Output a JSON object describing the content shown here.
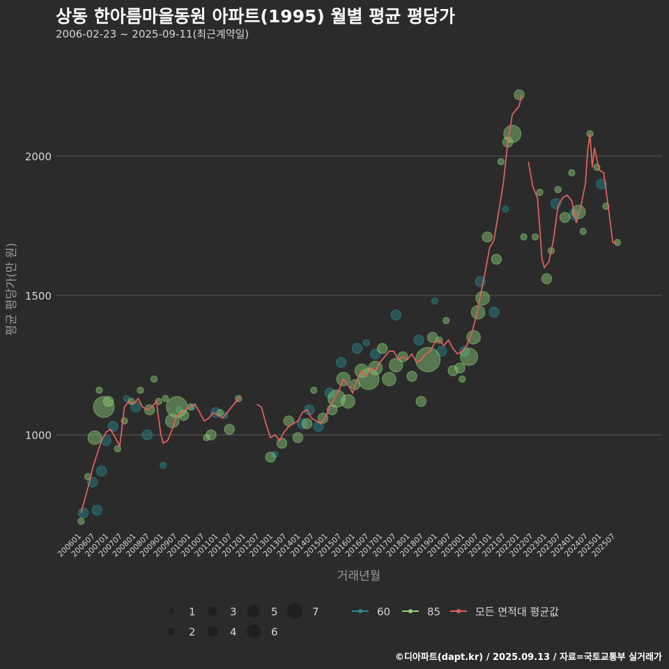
{
  "header": {
    "title": "상동 한아름마을동원 아파트(1995) 월별 평균 평당가",
    "subtitle": "2006-02-23 ~ 2025-09-11(최근계약일)"
  },
  "footer": {
    "credit": "©디아파트(dapt.kr) / 2025.09.13 / 자료=국토교통부 실거래가"
  },
  "colors": {
    "background": "#2b2b2c",
    "grid": "#5a5a5a",
    "series_60": "#2a8a8e",
    "series_85": "#8fd178",
    "series_avg": "#e06060"
  },
  "chart_data": {
    "type": "line",
    "xlabel": "거래년월",
    "ylabel": "평균 평당가(만 원)",
    "ylim": [
      660,
      2360
    ],
    "yticks": [
      1000,
      1500,
      2000
    ],
    "xticks": [
      "200601",
      "200607",
      "200701",
      "200707",
      "200801",
      "200807",
      "200901",
      "200907",
      "201001",
      "201007",
      "201101",
      "201107",
      "201201",
      "201207",
      "201301",
      "201307",
      "201401",
      "201407",
      "201501",
      "201507",
      "201601",
      "201607",
      "201701",
      "201707",
      "201801",
      "201807",
      "201901",
      "201907",
      "202001",
      "202007",
      "202101",
      "202107",
      "202201",
      "202207",
      "202301",
      "202307",
      "202401",
      "202407",
      "202501",
      "202507"
    ],
    "grid": true,
    "legend": {
      "size_title": "",
      "size_levels": [
        1,
        2,
        3,
        4,
        5,
        6,
        7
      ],
      "series": [
        {
          "name": "60",
          "color": "#2a8a8e"
        },
        {
          "name": "85",
          "color": "#8fd178"
        },
        {
          "name": "모든 면적대 평균값",
          "color": "#e06060"
        }
      ]
    },
    "avg_line": [
      [
        "2006-02",
        720
      ],
      [
        "2006-04",
        780
      ],
      [
        "2006-06",
        840
      ],
      [
        "2006-07",
        880
      ],
      [
        "2006-09",
        930
      ],
      [
        "2006-11",
        980
      ],
      [
        "2007-01",
        1010
      ],
      [
        "2007-03",
        1020
      ],
      [
        "2007-05",
        990
      ],
      [
        "2007-07",
        960
      ],
      [
        "2007-09",
        1100
      ],
      [
        "2007-11",
        1120
      ],
      [
        "2008-01",
        1110
      ],
      [
        "2008-03",
        1130
      ],
      [
        "2008-05",
        1100
      ],
      [
        "2008-07",
        1090
      ],
      [
        "2008-09",
        1100
      ],
      [
        "2008-11",
        1120
      ],
      [
        "2009-01",
        1000
      ],
      [
        "2009-02",
        970
      ],
      [
        "2009-04",
        980
      ],
      [
        "2009-06",
        1020
      ],
      [
        "2009-08",
        1070
      ],
      [
        "2009-10",
        1080
      ],
      [
        "2009-12",
        1090
      ],
      [
        "2010-02",
        1100
      ],
      [
        "2010-04",
        1110
      ],
      [
        "2010-06",
        1080
      ],
      [
        "2010-08",
        1050
      ],
      [
        "2010-10",
        1060
      ],
      [
        "2010-12",
        1080
      ],
      [
        "2011-02",
        1070
      ],
      [
        "2011-04",
        1060
      ],
      [
        "2011-06",
        1080
      ],
      [
        "2011-08",
        1100
      ],
      [
        "2011-10",
        1120
      ],
      [
        "2011-12",
        1140
      ],
      null,
      [
        "2012-07",
        1110
      ],
      [
        "2012-09",
        1100
      ],
      [
        "2012-11",
        1040
      ],
      [
        "2013-01",
        990
      ],
      [
        "2013-03",
        1000
      ],
      [
        "2013-05",
        980
      ],
      [
        "2013-07",
        1010
      ],
      [
        "2013-09",
        1030
      ],
      [
        "2013-11",
        1040
      ],
      [
        "2014-01",
        1050
      ],
      [
        "2014-03",
        1080
      ],
      [
        "2014-05",
        1090
      ],
      [
        "2014-07",
        1060
      ],
      [
        "2014-09",
        1050
      ],
      [
        "2014-11",
        1040
      ],
      [
        "2015-01",
        1060
      ],
      [
        "2015-03",
        1100
      ],
      [
        "2015-05",
        1130
      ],
      [
        "2015-07",
        1160
      ],
      [
        "2015-09",
        1200
      ],
      [
        "2015-11",
        1180
      ],
      [
        "2016-01",
        1150
      ],
      [
        "2016-03",
        1200
      ],
      [
        "2016-05",
        1230
      ],
      [
        "2016-07",
        1210
      ],
      [
        "2016-09",
        1240
      ],
      [
        "2016-11",
        1230
      ],
      [
        "2017-01",
        1260
      ],
      [
        "2017-03",
        1280
      ],
      [
        "2017-05",
        1300
      ],
      [
        "2017-07",
        1300
      ],
      [
        "2017-09",
        1270
      ],
      [
        "2017-11",
        1280
      ],
      [
        "2018-01",
        1270
      ],
      [
        "2018-03",
        1290
      ],
      [
        "2018-05",
        1260
      ],
      [
        "2018-07",
        1270
      ],
      [
        "2018-09",
        1290
      ],
      [
        "2018-11",
        1300
      ],
      [
        "2019-01",
        1330
      ],
      [
        "2019-03",
        1340
      ],
      [
        "2019-05",
        1320
      ],
      [
        "2019-07",
        1340
      ],
      [
        "2019-09",
        1310
      ],
      [
        "2019-11",
        1290
      ],
      [
        "2020-01",
        1300
      ],
      [
        "2020-03",
        1320
      ],
      [
        "2020-05",
        1360
      ],
      [
        "2020-07",
        1420
      ],
      [
        "2020-09",
        1500
      ],
      [
        "2020-11",
        1580
      ],
      [
        "2021-01",
        1670
      ],
      [
        "2021-03",
        1700
      ],
      [
        "2021-05",
        1800
      ],
      [
        "2021-07",
        1900
      ],
      [
        "2021-09",
        2050
      ],
      [
        "2021-11",
        2150
      ],
      [
        "2022-01",
        2170
      ],
      [
        "2022-02",
        2180
      ],
      [
        "2022-03",
        2220
      ],
      null,
      [
        "2022-06",
        1980
      ],
      [
        "2022-08",
        1890
      ],
      [
        "2022-10",
        1850
      ],
      [
        "2022-12",
        1630
      ],
      [
        "2023-01",
        1600
      ],
      [
        "2023-03",
        1620
      ],
      [
        "2023-05",
        1700
      ],
      [
        "2023-07",
        1820
      ],
      [
        "2023-09",
        1850
      ],
      [
        "2023-11",
        1860
      ],
      [
        "2024-01",
        1840
      ],
      [
        "2024-03",
        1760
      ],
      [
        "2024-05",
        1820
      ],
      [
        "2024-07",
        1900
      ],
      [
        "2024-08",
        2020
      ],
      [
        "2024-09",
        2080
      ],
      [
        "2024-10",
        1960
      ],
      [
        "2024-11",
        2030
      ],
      [
        "2025-01",
        1950
      ],
      [
        "2025-03",
        1940
      ],
      [
        "2025-05",
        1820
      ],
      [
        "2025-07",
        1690
      ],
      [
        "2025-09",
        1690
      ]
    ],
    "points_60": [
      [
        "2006-03",
        720,
        2
      ],
      [
        "2006-07",
        830,
        2
      ],
      [
        "2006-09",
        730,
        2
      ],
      [
        "2006-11",
        870,
        2
      ],
      [
        "2007-01",
        980,
        2
      ],
      [
        "2007-04",
        1030,
        2
      ],
      [
        "2007-10",
        1130,
        1
      ],
      [
        "2008-02",
        1100,
        2
      ],
      [
        "2008-07",
        1000,
        2
      ],
      [
        "2009-02",
        890,
        1
      ],
      [
        "2009-09",
        1090,
        1
      ],
      [
        "2010-03",
        1100,
        1
      ],
      [
        "2011-01",
        1080,
        2
      ],
      [
        "2011-05",
        1070,
        1
      ],
      [
        "2013-03",
        930,
        1
      ],
      [
        "2014-03",
        1040,
        2
      ],
      [
        "2014-06",
        1090,
        2
      ],
      [
        "2014-10",
        1030,
        2
      ],
      [
        "2015-03",
        1150,
        2
      ],
      [
        "2015-08",
        1260,
        2
      ],
      [
        "2016-03",
        1310,
        2
      ],
      [
        "2016-07",
        1330,
        1
      ],
      [
        "2016-11",
        1290,
        2
      ],
      [
        "2017-08",
        1430,
        2
      ],
      [
        "2018-06",
        1340,
        2
      ],
      [
        "2019-01",
        1480,
        1
      ],
      [
        "2019-04",
        1300,
        2
      ],
      [
        "2020-02",
        1300,
        2
      ],
      [
        "2020-09",
        1550,
        2
      ],
      [
        "2021-03",
        1440,
        2
      ],
      [
        "2021-08",
        1810,
        1
      ],
      [
        "2023-06",
        1830,
        2
      ],
      [
        "2024-02",
        1790,
        2
      ],
      [
        "2025-02",
        1900,
        2
      ]
    ],
    "points_85": [
      [
        "2006-02",
        690,
        1
      ],
      [
        "2006-05",
        850,
        1
      ],
      [
        "2006-08",
        990,
        3
      ],
      [
        "2006-10",
        1160,
        1
      ],
      [
        "2006-12",
        1100,
        5
      ],
      [
        "2007-02",
        1120,
        2
      ],
      [
        "2007-06",
        950,
        1
      ],
      [
        "2007-09",
        1050,
        1
      ],
      [
        "2007-12",
        1120,
        1
      ],
      [
        "2008-04",
        1160,
        1
      ],
      [
        "2008-08",
        1090,
        2
      ],
      [
        "2008-10",
        1200,
        1
      ],
      [
        "2008-12",
        1120,
        1
      ],
      [
        "2009-03",
        1130,
        1
      ],
      [
        "2009-06",
        1050,
        3
      ],
      [
        "2009-08",
        1100,
        5
      ],
      [
        "2009-11",
        1070,
        2
      ],
      [
        "2010-02",
        1100,
        1
      ],
      [
        "2010-09",
        990,
        1
      ],
      [
        "2010-11",
        1000,
        2
      ],
      [
        "2011-03",
        1080,
        1
      ],
      [
        "2011-07",
        1020,
        2
      ],
      [
        "2011-11",
        1130,
        1
      ],
      [
        "2013-01",
        920,
        2
      ],
      [
        "2013-06",
        970,
        2
      ],
      [
        "2013-09",
        1050,
        2
      ],
      [
        "2014-01",
        990,
        2
      ],
      [
        "2014-05",
        1040,
        2
      ],
      [
        "2014-08",
        1160,
        1
      ],
      [
        "2014-12",
        1060,
        2
      ],
      [
        "2015-04",
        1090,
        2
      ],
      [
        "2015-06",
        1130,
        4
      ],
      [
        "2015-09",
        1200,
        3
      ],
      [
        "2015-11",
        1120,
        3
      ],
      [
        "2016-02",
        1180,
        2
      ],
      [
        "2016-05",
        1230,
        3
      ],
      [
        "2016-08",
        1200,
        5
      ],
      [
        "2016-11",
        1240,
        3
      ],
      [
        "2017-02",
        1310,
        2
      ],
      [
        "2017-05",
        1200,
        3
      ],
      [
        "2017-08",
        1250,
        3
      ],
      [
        "2017-11",
        1280,
        2
      ],
      [
        "2018-03",
        1210,
        2
      ],
      [
        "2018-07",
        1120,
        2
      ],
      [
        "2018-10",
        1270,
        6
      ],
      [
        "2018-12",
        1350,
        2
      ],
      [
        "2019-03",
        1340,
        1
      ],
      [
        "2019-06",
        1410,
        1
      ],
      [
        "2019-09",
        1230,
        2
      ],
      [
        "2019-12",
        1240,
        2
      ],
      [
        "2020-01",
        1200,
        1
      ],
      [
        "2020-04",
        1280,
        4
      ],
      [
        "2020-06",
        1350,
        3
      ],
      [
        "2020-08",
        1440,
        3
      ],
      [
        "2020-10",
        1490,
        3
      ],
      [
        "2020-12",
        1710,
        2
      ],
      [
        "2021-04",
        1630,
        2
      ],
      [
        "2021-06",
        1980,
        1
      ],
      [
        "2021-09",
        2050,
        2
      ],
      [
        "2021-11",
        2080,
        4
      ],
      [
        "2022-02",
        2220,
        2
      ],
      [
        "2022-04",
        1710,
        1
      ],
      [
        "2022-09",
        1710,
        1
      ],
      [
        "2022-11",
        1870,
        1
      ],
      [
        "2023-02",
        1560,
        2
      ],
      [
        "2023-04",
        1660,
        1
      ],
      [
        "2023-07",
        1880,
        1
      ],
      [
        "2023-10",
        1780,
        2
      ],
      [
        "2024-01",
        1940,
        1
      ],
      [
        "2024-04",
        1800,
        3
      ],
      [
        "2024-06",
        1730,
        1
      ],
      [
        "2024-09",
        2080,
        1
      ],
      [
        "2024-12",
        1960,
        1
      ],
      [
        "2025-04",
        1820,
        1
      ],
      [
        "2025-09",
        1690,
        1
      ]
    ]
  }
}
